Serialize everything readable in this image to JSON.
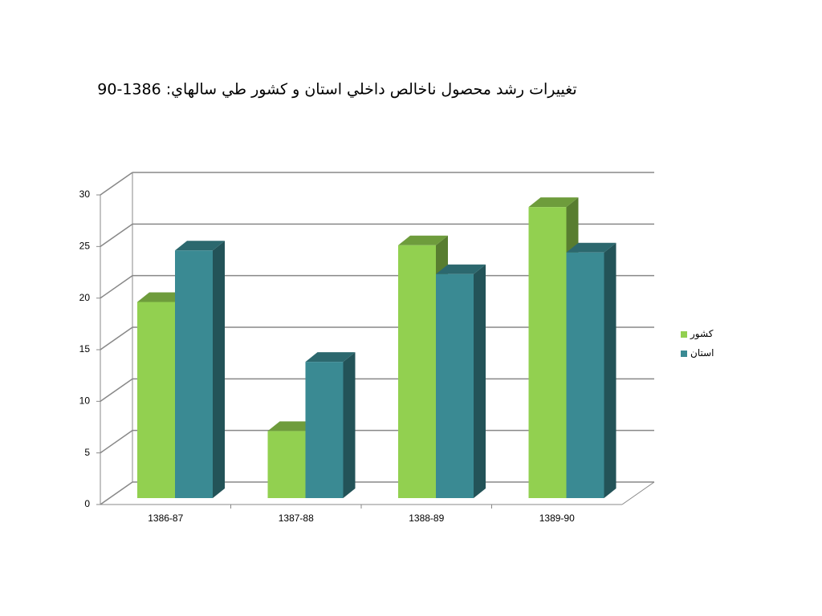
{
  "chart_data": {
    "type": "bar3d",
    "title": "تغييرات رشد محصول ناخالص داخلي استان و كشور طي سالهاي: 1386-90",
    "categories": [
      "1386-87",
      "1387-88",
      "1388-89",
      "1389-90"
    ],
    "series": [
      {
        "name": "كشور",
        "color": "#92d050",
        "values": [
          19,
          6.5,
          24.5,
          28.2
        ]
      },
      {
        "name": "استان",
        "color": "#3a8a93",
        "values": [
          24,
          13.2,
          21.7,
          23.8
        ]
      }
    ],
    "ylim": [
      0,
      30
    ],
    "yticks": [
      0,
      5,
      10,
      15,
      20,
      25,
      30
    ],
    "grid": true,
    "legend": "right"
  }
}
